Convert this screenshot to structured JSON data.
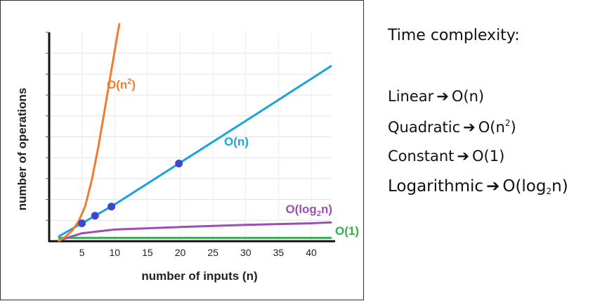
{
  "chart_data": {
    "type": "line",
    "title": "",
    "xlabel": "number of inputs (n)",
    "ylabel": "number of operations",
    "xlim": [
      0,
      43
    ],
    "ylim": [
      0,
      50
    ],
    "x_ticks": [
      "5",
      "10",
      "15",
      "20",
      "25",
      "30",
      "35",
      "40"
    ],
    "grid": true,
    "series": [
      {
        "name": "O(1)",
        "color": "#2eb04a",
        "label_parts": [
          "O(1)"
        ],
        "points": [
          [
            1.5,
            0.8
          ],
          [
            43,
            0.8
          ]
        ]
      },
      {
        "name": "O(log₂n)",
        "color": "#9b4fb5",
        "label_parts": [
          "O(log",
          "2",
          "n)"
        ],
        "points": [
          [
            1.5,
            0.2
          ],
          [
            5,
            1.9
          ],
          [
            10,
            2.8
          ],
          [
            20,
            3.4
          ],
          [
            30,
            3.9
          ],
          [
            40,
            4.3
          ],
          [
            43,
            4.5
          ]
        ]
      },
      {
        "name": "O(n)",
        "color": "#1aa3dc",
        "label_parts": [
          "O(n)"
        ],
        "points": [
          [
            1.5,
            1.2
          ],
          [
            5,
            4.3
          ],
          [
            7,
            6.1
          ],
          [
            10,
            8.8
          ],
          [
            20,
            18.8
          ],
          [
            30,
            28.8
          ],
          [
            43,
            41.9
          ]
        ]
      },
      {
        "name": "O(n²)",
        "color": "#ee7d31",
        "label_parts": [
          "O(n",
          "2",
          ")"
        ],
        "points": [
          [
            1.5,
            0.1
          ],
          [
            2.5,
            1.1
          ],
          [
            3.5,
            2.5
          ],
          [
            4.5,
            4.8
          ],
          [
            5.5,
            8.4
          ],
          [
            6.5,
            14.6
          ],
          [
            7.5,
            22.5
          ],
          [
            8.5,
            31.7
          ],
          [
            9.5,
            41
          ],
          [
            10.7,
            52
          ]
        ]
      }
    ],
    "highlight_points": [
      [
        5,
        4.3
      ],
      [
        7,
        6.1
      ],
      [
        9.5,
        8.3
      ],
      [
        19.8,
        18.6
      ]
    ],
    "highlight_color": "#3b47cc"
  },
  "panel": {
    "heading": "Time complexity:",
    "rows": [
      {
        "label": "Linear",
        "arrow": "➔",
        "pre": "O(n)",
        "mark": "",
        "post": ""
      },
      {
        "label": "Quadratic",
        "arrow": "➔",
        "pre": "O(n",
        "mark": "2",
        "post": ")"
      },
      {
        "label": "Constant",
        "arrow": "➔",
        "pre": "O(1)",
        "mark": "",
        "post": ""
      },
      {
        "label": "Logarithmic",
        "arrow": "➔",
        "pre": "O(log",
        "mark": "2",
        "post": "n)"
      }
    ]
  }
}
